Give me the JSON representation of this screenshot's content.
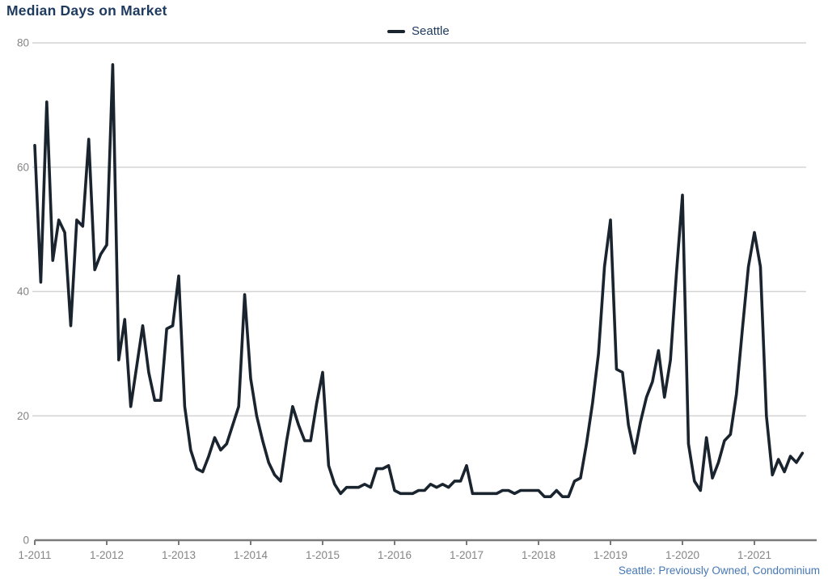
{
  "header": {
    "title": "Median Days on Market"
  },
  "legend": {
    "series_label": "Seattle"
  },
  "footer": {
    "caption": "Seattle: Previously Owned, Condominium"
  },
  "colors": {
    "title_text": "#1e3a5f",
    "legend_text": "#1e3a5f",
    "line": "#1a242e",
    "gridline": "#d4d4d4",
    "axis_line": "#7a7a7a",
    "tick_label": "#858585",
    "caption_text": "#4577b5"
  },
  "chart_data": {
    "type": "line",
    "title": "Median Days on Market",
    "frequency": "monthly",
    "x_start": "Jan 2011",
    "x_end": "Sep 2021",
    "x_tick_labels": [
      "1-2011",
      "1-2012",
      "1-2013",
      "1-2014",
      "1-2015",
      "1-2016",
      "1-2017",
      "1-2018",
      "1-2019",
      "1-2020",
      "1-2021"
    ],
    "y_ticks": [
      0,
      20,
      40,
      60,
      80
    ],
    "ylim": [
      0,
      80
    ],
    "grid": "horizontal",
    "legend_position": "top-center",
    "series": [
      {
        "name": "Seattle",
        "values": [
          63.5,
          41.5,
          70.5,
          45,
          51.5,
          49.5,
          34.5,
          51.5,
          50.5,
          64.5,
          43.5,
          46,
          47.5,
          76.5,
          29,
          35.5,
          21.5,
          28,
          34.5,
          27,
          22.5,
          22.5,
          34,
          34.5,
          42.5,
          21.5,
          14.5,
          11.5,
          11,
          13.5,
          16.5,
          14.5,
          15.5,
          18.5,
          21.5,
          39.5,
          26,
          20,
          16,
          12.5,
          10.5,
          9.5,
          16,
          21.5,
          18.5,
          16,
          16,
          22,
          27,
          12,
          9,
          7.5,
          8.5,
          8.5,
          8.5,
          9,
          8.5,
          11.5,
          11.5,
          12,
          8,
          7.5,
          7.5,
          7.5,
          8,
          8,
          9,
          8.5,
          9,
          8.5,
          9.5,
          9.5,
          12,
          7.5,
          7.5,
          7.5,
          7.5,
          7.5,
          8,
          8,
          7.5,
          8,
          8,
          8,
          8,
          7,
          7,
          8,
          7,
          7,
          9.5,
          10,
          15.5,
          22,
          30,
          44,
          51.5,
          27.5,
          27,
          18.5,
          14,
          19,
          23,
          25.5,
          30.5,
          23,
          29,
          43,
          55.5,
          15.5,
          9.5,
          8,
          16.5,
          10,
          12.5,
          16,
          17,
          23.5,
          34,
          44,
          49.5,
          44,
          20,
          10.5,
          13,
          11,
          13.5,
          12.5,
          14
        ]
      }
    ]
  }
}
